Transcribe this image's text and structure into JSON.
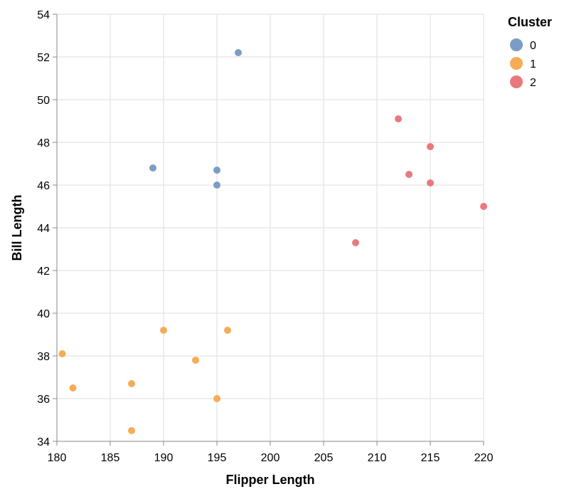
{
  "chart_data": {
    "type": "scatter",
    "xlabel": "Flipper Length",
    "ylabel": "Bill Length",
    "xlim": [
      180,
      220
    ],
    "ylim": [
      34,
      54
    ],
    "x_ticks": [
      180,
      185,
      190,
      195,
      200,
      205,
      210,
      215,
      220
    ],
    "y_ticks": [
      34,
      36,
      38,
      40,
      42,
      44,
      46,
      48,
      50,
      52,
      54
    ],
    "grid": true,
    "legend": {
      "title": "Cluster",
      "placement": "top-right",
      "entries": [
        {
          "label": "0",
          "color": "#7b9cc4"
        },
        {
          "label": "1",
          "color": "#f6ab57"
        },
        {
          "label": "2",
          "color": "#e9797d"
        }
      ]
    },
    "series": [
      {
        "name": "0",
        "color": "#7b9cc4",
        "points": [
          {
            "x": 197,
            "y": 52.2
          },
          {
            "x": 189,
            "y": 46.8
          },
          {
            "x": 195,
            "y": 46.7
          },
          {
            "x": 195,
            "y": 46.0
          }
        ]
      },
      {
        "name": "1",
        "color": "#f6ab57",
        "points": [
          {
            "x": 190,
            "y": 39.2
          },
          {
            "x": 196,
            "y": 39.2
          },
          {
            "x": 180.5,
            "y": 38.1
          },
          {
            "x": 193,
            "y": 37.8
          },
          {
            "x": 181.5,
            "y": 36.5
          },
          {
            "x": 187,
            "y": 36.7
          },
          {
            "x": 195,
            "y": 36.0
          },
          {
            "x": 187,
            "y": 34.5
          }
        ]
      },
      {
        "name": "2",
        "color": "#e9797d",
        "points": [
          {
            "x": 212,
            "y": 49.1
          },
          {
            "x": 215,
            "y": 47.8
          },
          {
            "x": 213,
            "y": 46.5
          },
          {
            "x": 215,
            "y": 46.1
          },
          {
            "x": 220,
            "y": 45.0
          },
          {
            "x": 208,
            "y": 43.3
          }
        ]
      }
    ]
  }
}
